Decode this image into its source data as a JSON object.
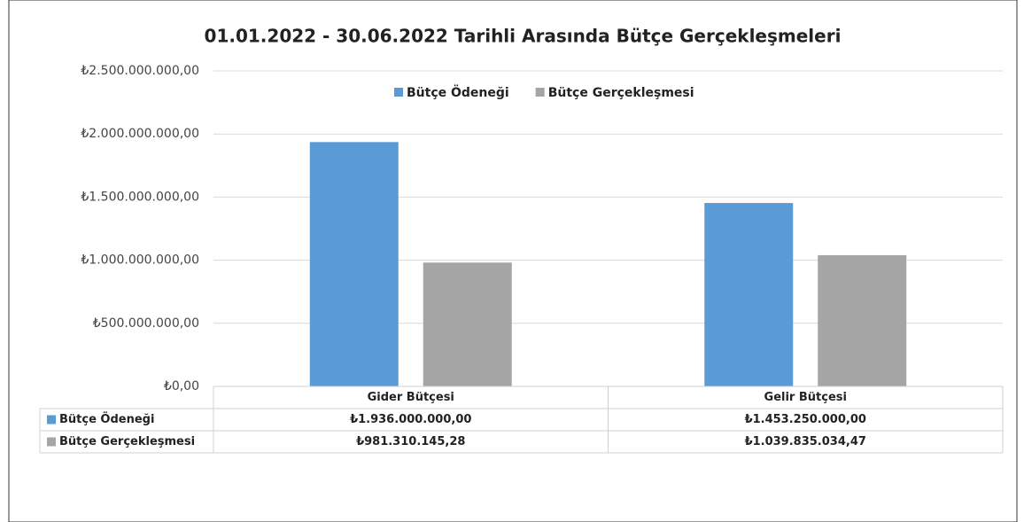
{
  "chart_data": {
    "type": "bar",
    "title": "01.01.2022 - 30.06.2022 Tarihli Arasında  Bütçe Gerçekleşmeleri",
    "categories": [
      "Gider Bütçesi",
      "Gelir Bütçesi"
    ],
    "series": [
      {
        "name": "Bütçe Ödeneği",
        "color": "#5b9bd5",
        "values": [
          1936000000,
          1453250000
        ],
        "value_labels": [
          "₺1.936.000.000,00",
          "₺1.453.250.000,00"
        ]
      },
      {
        "name": "Bütçe Gerçekleşmesi",
        "color": "#a5a5a5",
        "values": [
          981310145.28,
          1039835034.47
        ],
        "value_labels": [
          "₺981.310.145,28",
          "₺1.039.835.034,47"
        ]
      }
    ],
    "ylim": [
      0,
      2500000000
    ],
    "yticks": [
      {
        "value": 0,
        "label": "₺0,00"
      },
      {
        "value": 500000000,
        "label": "₺500.000.000,00"
      },
      {
        "value": 1000000000,
        "label": "₺1.000.000.000,00"
      },
      {
        "value": 1500000000,
        "label": "₺1.500.000.000,00"
      },
      {
        "value": 2000000000,
        "label": "₺2.000.000.000,00"
      },
      {
        "value": 2500000000,
        "label": "₺2.500.000.000,00"
      }
    ],
    "grid": true,
    "legend": "top"
  }
}
